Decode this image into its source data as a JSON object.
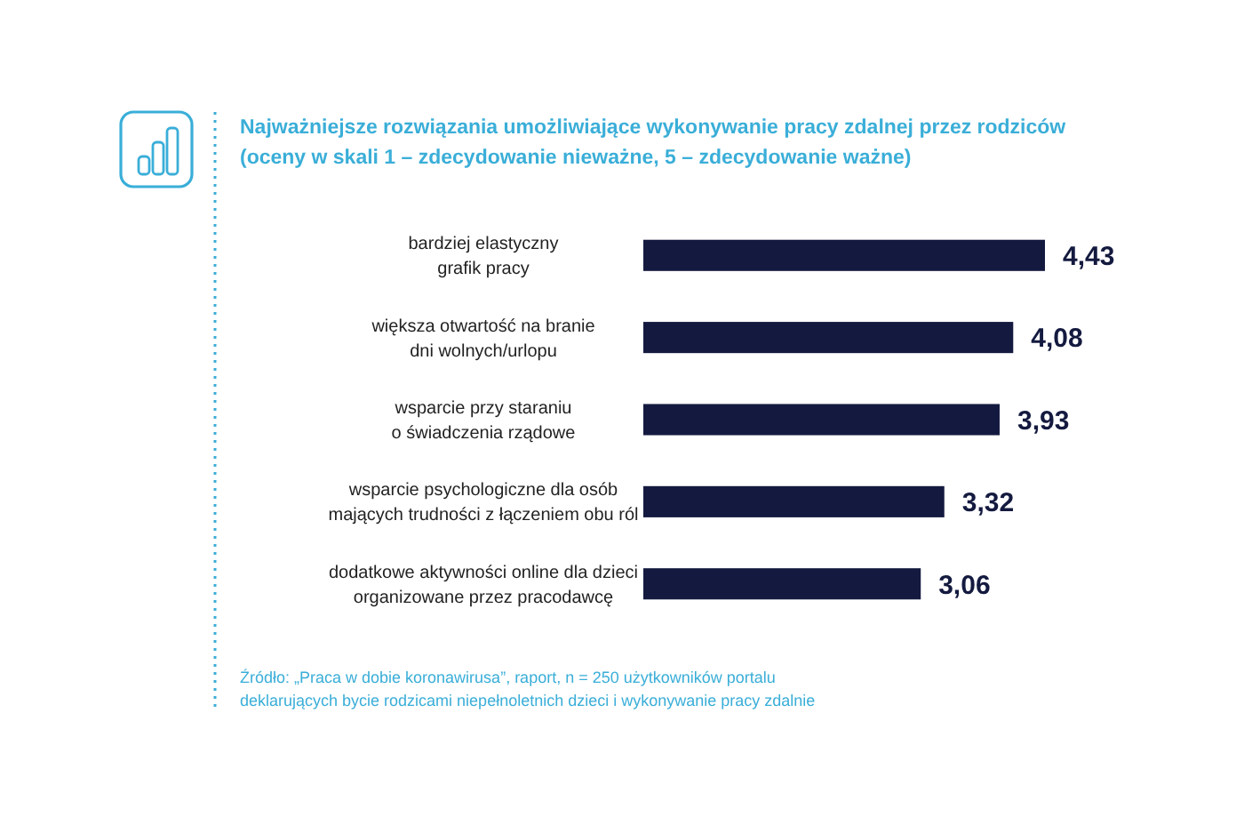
{
  "chart_data": {
    "type": "bar",
    "orientation": "horizontal",
    "title": "Najważniejsze rozwiązania umożliwiające wykonywanie pracy zdalnej przez rodziców",
    "subtitle": "(oceny w skali 1 – zdecydowanie nieważne, 5 – zdecydowanie ważne)",
    "categories": [
      "bardziej elastyczny\ngrafik pracy",
      "większa otwartość na branie\ndni wolnych/urlopu",
      "wsparcie przy staraniu\no świadczenia rządowe",
      "wsparcie psychologiczne dla osób\nmających trudności z łączeniem obu ról",
      "dodatkowe aktywności online dla dzieci\norganizowane przez pracodawcę"
    ],
    "values": [
      4.43,
      4.08,
      3.93,
      3.32,
      3.06
    ],
    "value_labels": [
      "4,43",
      "4,08",
      "3,93",
      "3,32",
      "3,06"
    ],
    "color": "#141a3f",
    "annotations": [
      "Źródło: „Praca w dobie koronawirusa”, raport, n = 250 użytkowników portalu deklarujących bycie rodzicami niepełnoletnich dzieci i wykonywanie pracy zdalnie"
    ]
  }
}
